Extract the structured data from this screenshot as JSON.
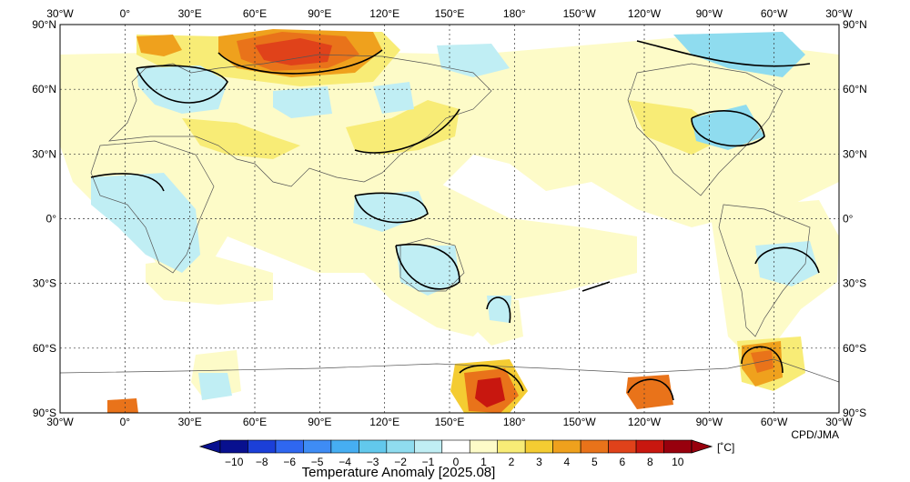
{
  "map": {
    "title": "Temperature Anomaly [2025.08]",
    "credit": "CPD/JMA",
    "lon_labels": [
      "30°W",
      "0°",
      "30°E",
      "60°E",
      "90°E",
      "120°E",
      "150°E",
      "180°",
      "150°W",
      "120°W",
      "90°W",
      "60°W",
      "30°W"
    ],
    "lat_labels": [
      "90°N",
      "60°N",
      "30°N",
      "0°",
      "30°S",
      "60°S",
      "90°S"
    ],
    "lon_values": [
      -30,
      0,
      30,
      60,
      90,
      120,
      150,
      180,
      210,
      240,
      270,
      300,
      330
    ],
    "lat_values": [
      90,
      60,
      30,
      0,
      -30,
      -60,
      -90
    ]
  },
  "colorbar": {
    "unit": "[˚C]",
    "tick_labels": [
      "−10",
      "−8",
      "−6",
      "−5",
      "−4",
      "−3",
      "−2",
      "−1",
      "0",
      "1",
      "2",
      "3",
      "4",
      "5",
      "6",
      "8",
      "10"
    ],
    "colors": [
      "#08108f",
      "#1b3fd8",
      "#2f67f0",
      "#3e8cf5",
      "#46aef2",
      "#62c8ec",
      "#8fdcef",
      "#c0eef4",
      "#ffffff",
      "#fdfbc8",
      "#f8ec76",
      "#f4cc32",
      "#efa11d",
      "#e9731a",
      "#e0421a",
      "#c8170f",
      "#98000d"
    ],
    "color_names": [
      "blue-darkest",
      "blue-dark",
      "blue",
      "blue-mid",
      "cyan-dark",
      "cyan",
      "cyan-light",
      "cyan-pale",
      "white",
      "yellow-pale",
      "yellow",
      "yellow-dark",
      "orange-light",
      "orange",
      "red-orange",
      "red",
      "dark-red"
    ]
  },
  "anomalies": [
    {
      "name": "northern-siberia-warm",
      "lon": 80,
      "lat": 72,
      "value": 6
    },
    {
      "name": "arctic-canada-cool",
      "lon": 285,
      "lat": 78,
      "value": -2
    },
    {
      "name": "europe-cool",
      "lon": 20,
      "lat": 60,
      "value": -1
    },
    {
      "name": "east-asia-warm",
      "lon": 125,
      "lat": 37,
      "value": 2
    },
    {
      "name": "north-america-cool",
      "lon": 265,
      "lat": 40,
      "value": -1
    },
    {
      "name": "australia-cool",
      "lon": 135,
      "lat": -25,
      "value": -1
    },
    {
      "name": "antarctica-ross-warm",
      "lon": 175,
      "lat": -80,
      "value": 8
    },
    {
      "name": "antarctic-peninsula-warm",
      "lon": 292,
      "lat": -68,
      "value": 5
    },
    {
      "name": "west-antarctica-warm",
      "lon": 245,
      "lat": -80,
      "value": 4
    }
  ]
}
